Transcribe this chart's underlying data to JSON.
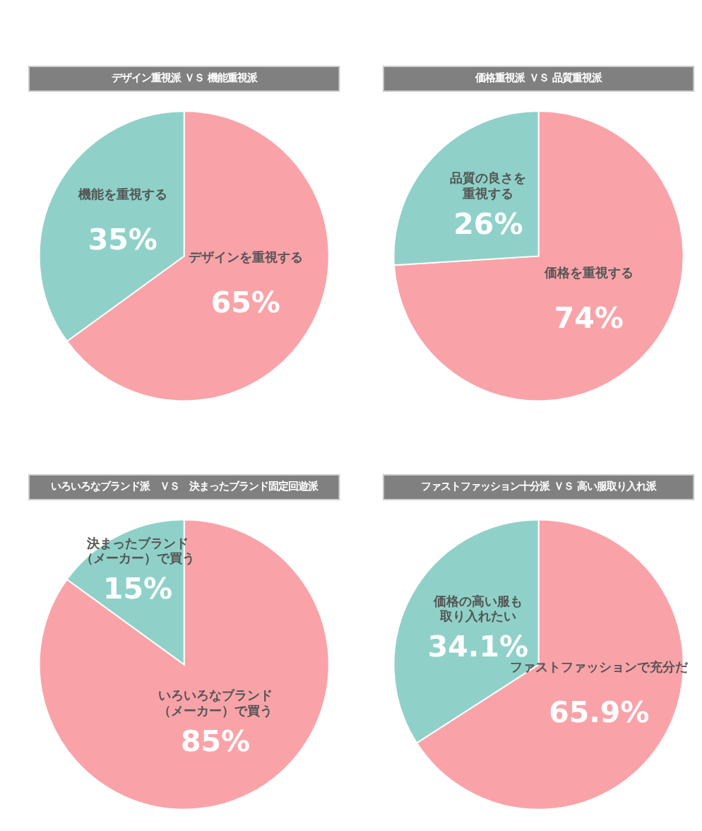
{
  "chart_data": [
    {
      "type": "pie",
      "title": "デザイン重視派 ＶＳ 機能重視派",
      "categories": [
        "デザインを重視する",
        "機能を重視する"
      ],
      "values": [
        65,
        35
      ],
      "colors": [
        "#f9a3a9",
        "#8fd1c8"
      ],
      "value_labels": [
        "65%",
        "35%"
      ]
    },
    {
      "type": "pie",
      "title": "価格重視派 ＶＳ 品質重視派",
      "categories": [
        "価格を重視する",
        "品質の良さを重視する"
      ],
      "values": [
        74,
        26
      ],
      "colors": [
        "#f9a3a9",
        "#8fd1c8"
      ],
      "value_labels": [
        "74%",
        "26%"
      ]
    },
    {
      "type": "pie",
      "title": "いろいろなブランド派　ＶＳ　決まったブランド固定回遊派",
      "categories": [
        "いろいろなブランド（メーカー）で買う",
        "決まったブランド（メーカー）で買う"
      ],
      "values": [
        85,
        15
      ],
      "colors": [
        "#f9a3a9",
        "#8fd1c8"
      ],
      "value_labels": [
        "85%",
        "15%"
      ]
    },
    {
      "type": "pie",
      "title": "ファストファッション十分派 ＶＳ 高い服取り入れ派",
      "categories": [
        "ファストファッションで充分だ",
        "価格の高い服も取り入れたい"
      ],
      "values": [
        65.9,
        34.1
      ],
      "colors": [
        "#f9a3a9",
        "#8fd1c8"
      ],
      "value_labels": [
        "65.9%",
        "34.1%"
      ]
    }
  ]
}
